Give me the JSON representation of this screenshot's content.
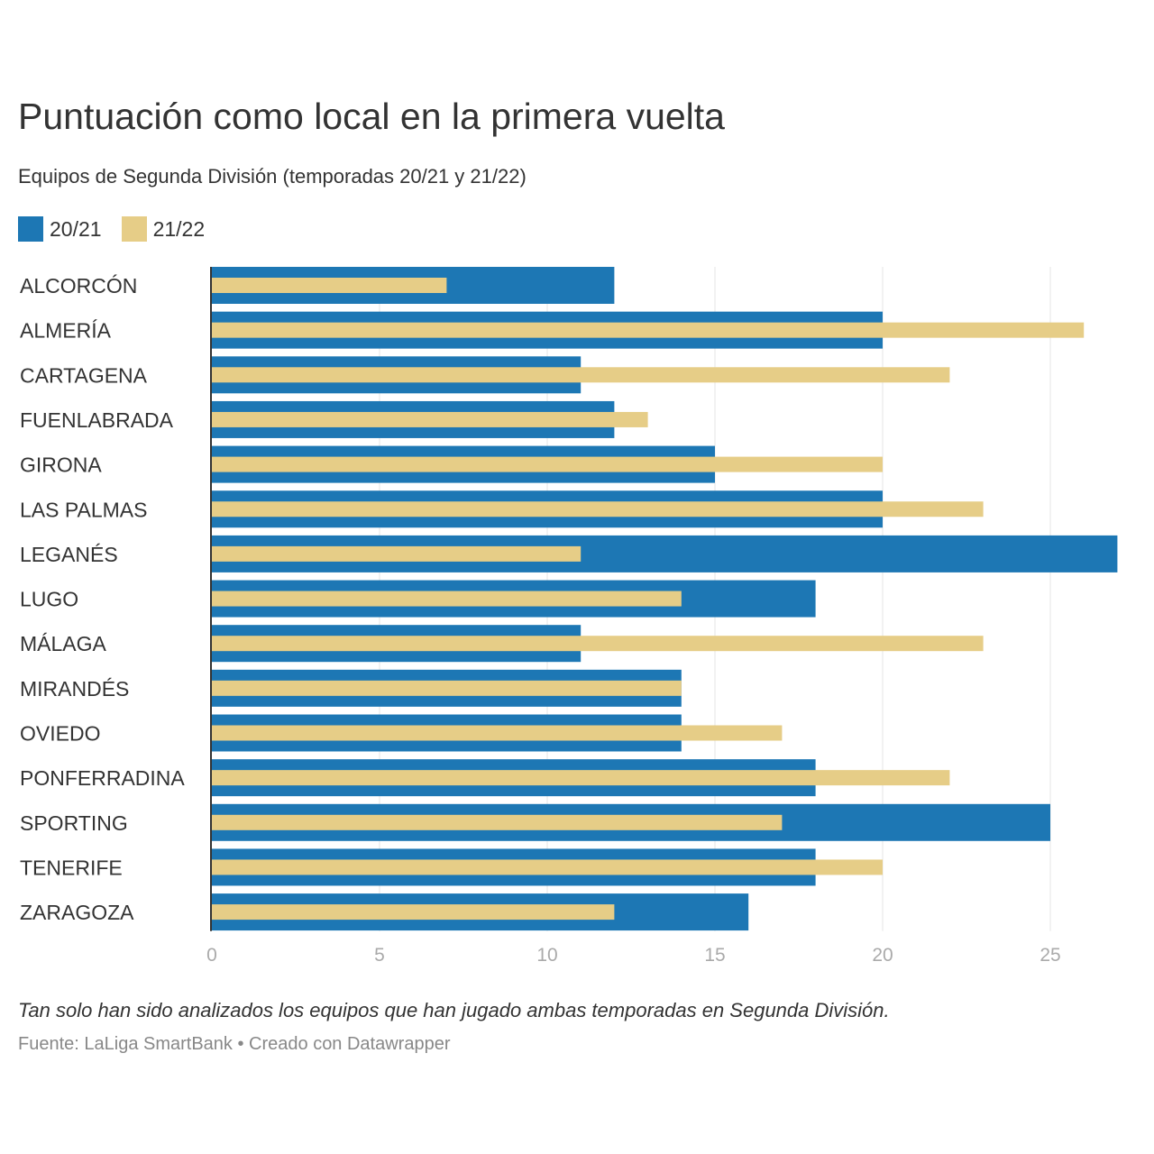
{
  "chart_data": {
    "type": "bar",
    "orientation": "horizontal",
    "title": "Puntuación como local en la primera vuelta",
    "subtitle": "Equipos de Segunda División (temporadas 20/21 y 21/22)",
    "categories": [
      "ALCORCÓN",
      "ALMERÍA",
      "CARTAGENA",
      "FUENLABRADA",
      "GIRONA",
      "LAS PALMAS",
      "LEGANÉS",
      "LUGO",
      "MÁLAGA",
      "MIRANDÉS",
      "OVIEDO",
      "PONFERRADINA",
      "SPORTING",
      "TENERIFE",
      "ZARAGOZA"
    ],
    "series": [
      {
        "name": "20/21",
        "color": "#1d77b4",
        "values": [
          12,
          20,
          11,
          12,
          15,
          20,
          27,
          18,
          11,
          14,
          14,
          18,
          25,
          18,
          16
        ]
      },
      {
        "name": "21/22",
        "color": "#e6cd87",
        "values": [
          7,
          26,
          22,
          13,
          20,
          23,
          11,
          14,
          23,
          14,
          17,
          22,
          17,
          20,
          12
        ]
      }
    ],
    "xlim": [
      0,
      27
    ],
    "xticks": [
      "0",
      "5",
      "10",
      "15",
      "20",
      "25"
    ],
    "grid": true,
    "legend_position": "top-left",
    "note": "Tan solo han sido analizados los equipos que han jugado ambas temporadas en Segunda División.",
    "source": "Fuente: LaLiga SmartBank • Creado con Datawrapper"
  }
}
